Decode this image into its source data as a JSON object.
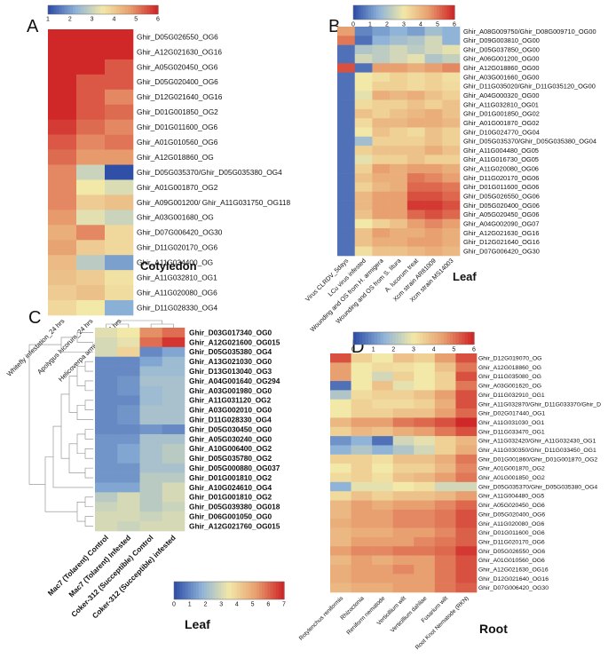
{
  "figure": {
    "colors": [
      "#3050a8",
      "#8fb4d8",
      "#f2e8a8",
      "#e8a070",
      "#d02828"
    ]
  },
  "chart_data": [
    {
      "panel": "A",
      "type": "heatmap",
      "title": "Cotyledon",
      "colorbar_ticks": [
        "1",
        "2",
        "3",
        "4",
        "5",
        "6"
      ],
      "vmin": 1,
      "vmax": 6,
      "columns": [
        "Whitefly infestation_24 hrs",
        "Apolygus lucorum_24 hrs",
        "Helicoverpa armigera_24 hrs"
      ],
      "rows": [
        "Ghir_D05G026550_OG6",
        "Ghir_A12G021630_OG16",
        "Ghir_A05G020450_OG6",
        "Ghir_D05G020400_OG6",
        "Ghir_D12G021640_OG16",
        "Ghir_D01G001850_OG2",
        "Ghir_D01G011600_OG6",
        "Ghir_A01G010560_OG6",
        "Ghir_A12G018860_OG",
        "Ghir_D05G035370/Ghir_D05G035380_OG4",
        "Ghir_A01G001870_OG2",
        "Ghir_A09G001200/ Ghir_A11G031750_OG118",
        "Ghir_A03G001680_OG",
        "Ghir_D07G006420_OG30",
        "Ghir_D11G020170_OG6",
        "Ghir_A11G034400_OG",
        "Ghir_A11G032810_OG1",
        "Ghir_A11G020080_OG6",
        "Ghir_D11G028330_OG4"
      ],
      "values": [
        [
          6,
          6,
          6
        ],
        [
          6,
          6,
          6
        ],
        [
          6,
          6,
          5.5
        ],
        [
          6,
          5.5,
          5.5
        ],
        [
          6,
          5.5,
          5
        ],
        [
          6,
          5.5,
          5.3
        ],
        [
          5.8,
          5.3,
          5
        ],
        [
          5.5,
          5,
          5.2
        ],
        [
          5.3,
          4.8,
          4.8
        ],
        [
          5,
          3,
          1
        ],
        [
          5,
          3.5,
          3.2
        ],
        [
          5,
          4,
          4.2
        ],
        [
          4.8,
          3.3,
          3
        ],
        [
          4.5,
          5,
          3.8
        ],
        [
          4.7,
          4,
          3.8
        ],
        [
          4.3,
          2.8,
          2
        ],
        [
          4.2,
          4,
          3.6
        ],
        [
          4,
          4.2,
          3.7
        ],
        [
          3.8,
          3.5,
          2.2
        ]
      ]
    },
    {
      "panel": "B",
      "type": "heatmap",
      "title": "Leaf",
      "colorbar_ticks": [
        "0",
        "1",
        "2",
        "3",
        "4",
        "5",
        "6"
      ],
      "vmin": 0,
      "vmax": 6,
      "columns": [
        "Virus CLRDV_5days",
        "LCu virus infested",
        "Wounding and OS from H. armigera",
        "Wounding and OS from S. litura",
        "A. lucorum treat",
        "Xcm strain AR81009",
        "Xcm strain MS14003"
      ],
      "rows": [
        "Ghir_A08G009750/Ghir_D08G009710_OG00",
        "Ghir_D09G003810_OG00",
        "Ghir_D05G037850_OG00",
        "Ghir_A06G001200_OG00",
        "Ghir_A12G018860_OG00",
        "Ghir_A03G001660_OG00",
        "Ghir_D11G035020/Ghir_D11G035120_OG00",
        "Ghir_A04G000320_OG00",
        "Ghir_A11G032810_OG01",
        "Ghir_D01G001850_OG02",
        "Ghir_A01G001870_OG02",
        "Ghir_D10G024770_OG04",
        "Ghir_D05G035370/Ghir_D05G035380_OG04",
        "Ghir_A11G004480_OG05",
        "Ghir_A11G016730_OG05",
        "Ghir_A11G020080_OG06",
        "Ghir_D11G020170_OG06",
        "Ghir_D01G011600_OG06",
        "Ghir_D05G026550_OG06",
        "Ghir_D05G020400_OG06",
        "Ghir_A05G020450_OG06",
        "Ghir_A04G002090_OG07",
        "Ghir_A12G021630_OG16",
        "Ghir_D12G021640_OG16",
        "Ghir_D07G006420_OG30"
      ],
      "values": [
        [
          4.5,
          0.8,
          1.2,
          1.5,
          1.2,
          1.8,
          1.5
        ],
        [
          5,
          0.5,
          1.5,
          1.8,
          2,
          2.5,
          1.5
        ],
        [
          0.5,
          2,
          2.2,
          2.5,
          2.2,
          2.5,
          2.8
        ],
        [
          0.5,
          2.5,
          2.2,
          2.5,
          2.8,
          2,
          2.3
        ],
        [
          5.5,
          0.5,
          4.5,
          4.5,
          4.2,
          4.5,
          4.8
        ],
        [
          0.5,
          3,
          3.2,
          3.5,
          3.3,
          3.5,
          3.2
        ],
        [
          0.5,
          3,
          3.5,
          3.5,
          3.3,
          3.5,
          3.3
        ],
        [
          0.5,
          2.8,
          4.2,
          4,
          4.2,
          3.8,
          3.5
        ],
        [
          0.5,
          3.3,
          3.5,
          3.5,
          3.8,
          3.5,
          3.8
        ],
        [
          0.5,
          3.8,
          3.5,
          3.8,
          4,
          4.2,
          3.8
        ],
        [
          0.5,
          3.3,
          4,
          4,
          4.2,
          4.2,
          4
        ],
        [
          0.5,
          3,
          3.8,
          3.5,
          3.3,
          3.8,
          3.5
        ],
        [
          0.5,
          1.8,
          3.5,
          3.5,
          3.5,
          3.8,
          3.5
        ],
        [
          0.5,
          3.5,
          3.8,
          3.8,
          3.8,
          4.2,
          3.8
        ],
        [
          0.5,
          2.8,
          3.5,
          3.5,
          3.8,
          3.5,
          3.5
        ],
        [
          0.5,
          3.5,
          4.5,
          4.2,
          4.5,
          4.5,
          4.2
        ],
        [
          0.5,
          3.8,
          4.2,
          4.2,
          5,
          4.8,
          4.5
        ],
        [
          0.5,
          3.5,
          4,
          4.2,
          5.2,
          5.2,
          5
        ],
        [
          0.5,
          4,
          4.5,
          4.5,
          5.5,
          5.5,
          5.2
        ],
        [
          0.5,
          4,
          4.5,
          4.5,
          5.8,
          5.8,
          5.5
        ],
        [
          0.5,
          3.8,
          4.5,
          4.5,
          5.2,
          5.5,
          5.2
        ],
        [
          0.5,
          3,
          3.5,
          3.8,
          4.5,
          4.8,
          4.5
        ],
        [
          0.5,
          3.8,
          4.5,
          4.2,
          4.2,
          4.5,
          4.2
        ],
        [
          0.5,
          3.8,
          4.2,
          4.2,
          4.5,
          4.5,
          4.2
        ],
        [
          0.5,
          3.2,
          3.8,
          3.8,
          4,
          4.2,
          4
        ]
      ]
    },
    {
      "panel": "C",
      "type": "heatmap",
      "title": "Leaf",
      "colorbar_ticks": [
        "0",
        "1",
        "2",
        "3",
        "4",
        "5",
        "6",
        "7"
      ],
      "vmin": 0,
      "vmax": 7,
      "columns": [
        "Mac7 (Tolarent) Control",
        "Mac7 (Tolarent) Infested",
        "Coker-312 (Succeptible) Control",
        "Coker-312 (Succeptible) infested"
      ],
      "rows": [
        "Ghir_D03G017340_OG0",
        "Ghir_A12G021600_OG015",
        "Ghir_D05G035380_OG4",
        "Ghir_A13G021030_OG0",
        "Ghir_D13G013040_OG3",
        "Ghir_A04G001640_OG294",
        "Ghir_A03G001980_OG0",
        "Ghir_A11G031120_OG2",
        "Ghir_A03G002010_OG0",
        "Ghir_D11G028330_OG4",
        "Ghir_D05G030450_OG0",
        "Ghir_A05G030240_OG0",
        "Ghir_A10G006400_OG2",
        "Ghir_D05G035780_OG2",
        "Ghir_D05G000880_OG037",
        "Ghir_D01G001810_OG2",
        "Ghir_A10G024610_OG4",
        "Ghir_D01G001810_OG2",
        "Ghir_D05G039380_OG018",
        "Ghir_D06G001050_OG0",
        "Ghir_A12G021760_OG015"
      ],
      "values": [
        [
          3.2,
          3.5,
          5.5,
          6
        ],
        [
          3,
          3.3,
          6,
          6.8
        ],
        [
          3,
          4,
          1,
          1.5
        ],
        [
          1,
          1,
          1.5,
          2
        ],
        [
          1,
          1,
          2,
          2
        ],
        [
          1,
          1.2,
          2.2,
          2.2
        ],
        [
          1,
          1.2,
          2,
          2.2
        ],
        [
          1,
          1,
          2,
          2.2
        ],
        [
          1,
          1.2,
          2.2,
          2.2
        ],
        [
          1,
          1.2,
          2.2,
          2.2
        ],
        [
          1,
          1,
          1.2,
          1
        ],
        [
          1.2,
          1.2,
          2.2,
          2.2
        ],
        [
          1.2,
          1.5,
          2.2,
          2.5
        ],
        [
          1.2,
          1.5,
          2.2,
          2.5
        ],
        [
          1.2,
          1.2,
          2.2,
          2.2
        ],
        [
          1.2,
          1.2,
          2.5,
          2.5
        ],
        [
          1.5,
          1.5,
          2.5,
          3
        ],
        [
          2.5,
          3,
          2.5,
          3
        ],
        [
          2.8,
          3,
          2.5,
          2.8
        ],
        [
          3,
          3,
          2.8,
          3
        ],
        [
          3,
          2.8,
          3,
          3
        ]
      ]
    },
    {
      "panel": "D",
      "type": "heatmap",
      "title": "Root",
      "colorbar_ticks": [
        "0",
        "1",
        "2",
        "3",
        "4",
        "5",
        "6"
      ],
      "vmin": 0,
      "vmax": 6,
      "columns": [
        "Rotylenchus reniformis",
        "Rhizoctonia",
        "Reniform nematode",
        "Verticillium wilt",
        "Verticillium dahliae",
        "Fusarium wilt",
        "Root Knot Nematode (RKN)"
      ],
      "rows": [
        "Ghir_D12G019070_OG",
        "Ghir_A12G018860_OG",
        "Ghir_D11G035080_OG",
        "Ghir_A03G001620_OG",
        "Ghir_D11G032910_OG1",
        "Ghir_A11G032870/Ghir_D11G033370/Ghir_D",
        "Ghir_D02G017440_OG1",
        "Ghir_A11G031030_OG1",
        "Ghir_D11G033470_OG1",
        "Ghir_A11G032420/Ghir_A11G032430_OG1",
        "Ghir_A11G030350/Ghir_D11G033450_OG1",
        "Ghir_D01G001860/Ghir_D01G001870_OG2",
        "Ghir_A01G001870_OG2",
        "Ghir_A01G001850_OG2",
        "Ghir_D05G035370/Ghir_D05G035380_OG4",
        "Ghir_A11G004480_OG5",
        "Ghir_A05G020450_OG6",
        "Ghir_D05G020400_OG6",
        "Ghir_A11G020080_OG6",
        "Ghir_D01G011600_OG6",
        "Ghir_D11G020170_OG6",
        "Ghir_D05G026550_OG6",
        "Ghir_A01G010560_OG6",
        "Ghir_A12G021630_OG16",
        "Ghir_D12G021640_OG16",
        "Ghir_D07G006420_OG30"
      ],
      "values": [
        [
          5.5,
          3.5,
          3,
          3.8,
          3.5,
          4.5,
          5.5
        ],
        [
          4.5,
          3,
          3.3,
          3.2,
          3,
          3.8,
          5
        ],
        [
          4.5,
          3,
          2.5,
          3.5,
          3,
          3.5,
          5.5
        ],
        [
          0.5,
          3,
          3.8,
          2.8,
          3,
          3.5,
          5
        ],
        [
          2,
          3.3,
          3.5,
          3.5,
          3.8,
          4.5,
          5.5
        ],
        [
          3,
          3.5,
          3.3,
          3.3,
          3.5,
          4.2,
          5.5
        ],
        [
          3,
          3.5,
          3.5,
          3.8,
          3.8,
          4.5,
          5.2
        ],
        [
          4,
          4.5,
          4.5,
          5,
          5.2,
          5.5,
          6
        ],
        [
          3.5,
          4,
          3.8,
          4.2,
          4.5,
          5,
          5.5
        ],
        [
          1,
          1.5,
          0.5,
          2.5,
          2.8,
          3.5,
          4
        ],
        [
          1.5,
          2,
          1.5,
          2,
          2.5,
          3.5,
          4.2
        ],
        [
          3.5,
          3.5,
          3.2,
          3.8,
          3.8,
          4.2,
          5
        ],
        [
          3,
          3.5,
          3,
          3.5,
          3.5,
          4,
          4.8
        ],
        [
          3.3,
          3.5,
          3.2,
          3.8,
          4,
          4.5,
          5
        ],
        [
          1.5,
          2.8,
          2.8,
          3,
          3.2,
          2.5,
          2.5
        ],
        [
          3.3,
          3.8,
          3.5,
          3.8,
          3.8,
          4,
          4.5
        ],
        [
          4,
          4.5,
          4.2,
          4.5,
          4.5,
          4.8,
          5.2
        ],
        [
          4,
          4.5,
          4.5,
          4.8,
          4.8,
          5,
          5.5
        ],
        [
          4.2,
          4.5,
          4.5,
          4.8,
          4.8,
          5,
          5.5
        ],
        [
          4,
          4.2,
          4.2,
          4.5,
          4.5,
          4.8,
          5.3
        ],
        [
          4,
          4.5,
          4.5,
          4.5,
          4.8,
          5,
          5.3
        ],
        [
          4.5,
          4.8,
          4.8,
          5,
          5,
          5.2,
          5.8
        ],
        [
          4,
          4.5,
          4.2,
          4.5,
          4.5,
          5,
          5.5
        ],
        [
          4.2,
          4.5,
          4.5,
          4.8,
          4.5,
          5,
          5.5
        ],
        [
          4.2,
          4.5,
          4.5,
          4.5,
          4.5,
          5,
          5.5
        ],
        [
          4,
          4.2,
          4.2,
          4.5,
          4.5,
          5,
          5.3
        ]
      ]
    }
  ]
}
